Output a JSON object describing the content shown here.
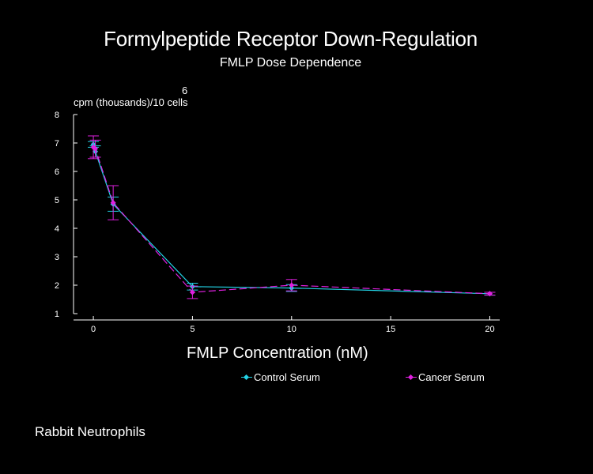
{
  "chart_data": {
    "type": "line",
    "title": "Formylpeptide Receptor Down-Regulation",
    "subtitle": "FMLP Dose Dependence",
    "ylabel": "cpm (thousands)/10 cells",
    "ylabel_superscript": "6",
    "xlabel": "FMLP Concentration (nM)",
    "xlim": [
      -1,
      20.5
    ],
    "ylim": [
      1,
      8
    ],
    "xticks": [
      0,
      5,
      10,
      15,
      20
    ],
    "yticks": [
      1,
      2,
      3,
      4,
      5,
      6,
      7,
      8
    ],
    "grid": false,
    "legend_position": "bottom",
    "series": [
      {
        "name": "Control Serum",
        "color": "#22d3e6",
        "dash": "solid",
        "x": [
          0,
          0.1,
          1,
          5,
          10,
          20
        ],
        "y": [
          6.95,
          6.7,
          4.85,
          1.95,
          1.9,
          1.7
        ],
        "err": [
          0.1,
          0.2,
          0.25,
          0.12,
          0.12,
          0.05
        ]
      },
      {
        "name": "Cancer Serum",
        "color": "#e020e0",
        "dash": "dashed",
        "x": [
          0,
          0.1,
          1,
          5,
          10,
          20
        ],
        "y": [
          6.85,
          6.8,
          4.9,
          1.75,
          2.0,
          1.7
        ],
        "err": [
          0.4,
          0.3,
          0.6,
          0.22,
          0.2,
          0.05
        ]
      }
    ]
  },
  "footnote": "Rabbit Neutrophils"
}
